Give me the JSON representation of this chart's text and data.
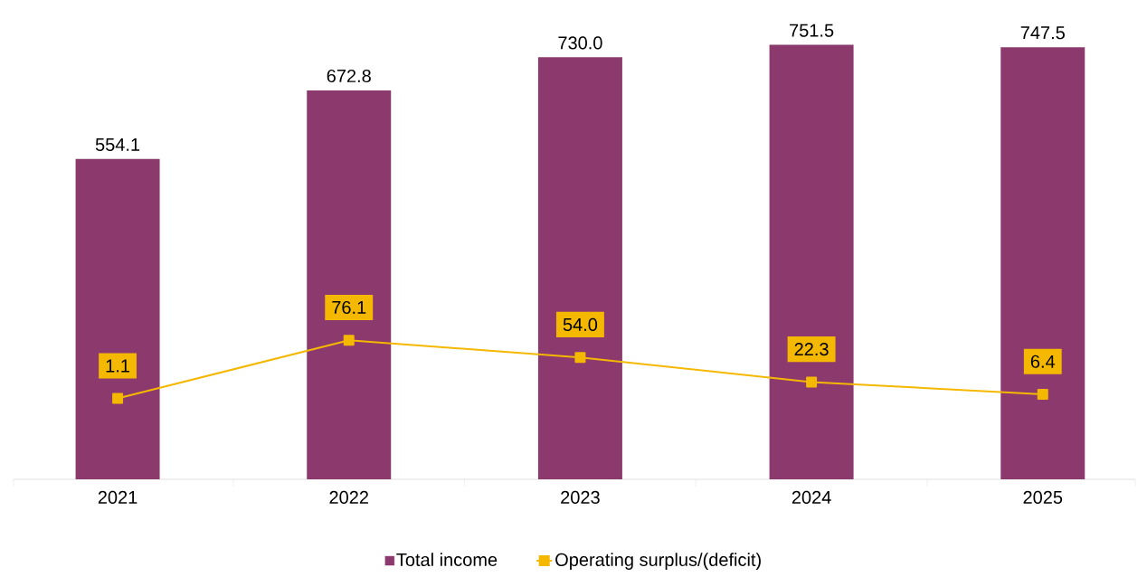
{
  "chart_data": {
    "type": "bar",
    "categories": [
      "2021",
      "2022",
      "2023",
      "2024",
      "2025"
    ],
    "series": [
      {
        "name": "Total income",
        "color": "#8c3a6e",
        "values": [
          554.1,
          672.8,
          730.0,
          751.5,
          747.5
        ],
        "value_labels": [
          "554.1",
          "672.8",
          "730.0",
          "751.5",
          "747.5"
        ]
      },
      {
        "name": "Operating surplus/(deficit)",
        "type": "line",
        "axis": "y2",
        "color": "#f5b800",
        "marker": "square",
        "values": [
          1.1,
          76.1,
          54.0,
          22.3,
          6.4
        ],
        "value_labels": [
          "1.1",
          "76.1",
          "54.0",
          "22.3",
          "6.4"
        ]
      }
    ],
    "legend": "bottom",
    "tick_labels": "x",
    "grid": false
  }
}
